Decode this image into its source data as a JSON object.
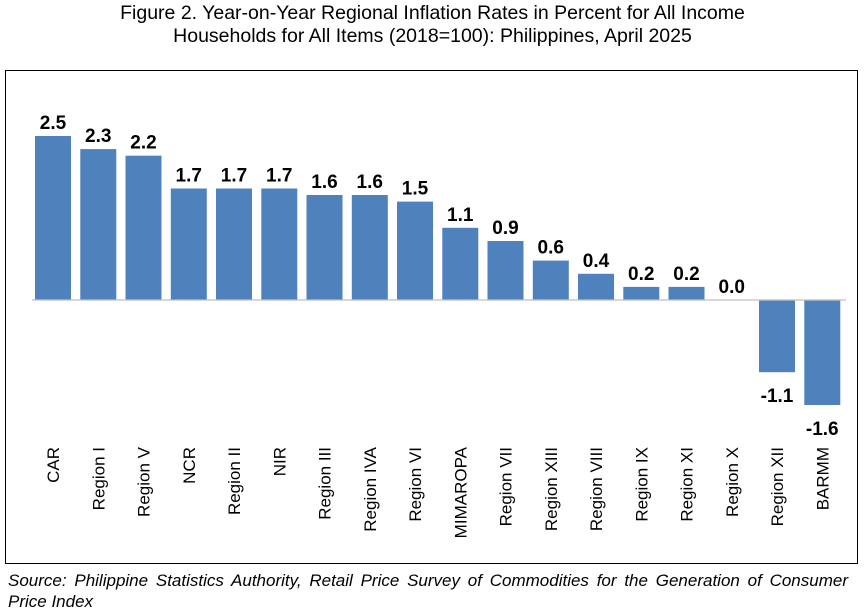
{
  "title_line1": "Figure 2. Year-on-Year Regional Inflation Rates in Percent for All Income",
  "title_line2": "Households for All Items (2018=100): Philippines, April 2025",
  "source": "Source: Philippine Statistics Authority, Retail Price Survey of Commodities for the Generation of Consumer Price Index",
  "colors": {
    "bar": "#4f81bd",
    "axis": "#bfbfbf",
    "frame": "#000000"
  },
  "chart_data": {
    "type": "bar",
    "title": "Figure 2. Year-on-Year Regional Inflation Rates in Percent for All Income Households for All Items (2018=100): Philippines, April 2025",
    "categories": [
      "CAR",
      "Region I",
      "Region V",
      "NCR",
      "Region II",
      "NIR",
      "Region III",
      "Region IVA",
      "Region VI",
      "MIMAROPA",
      "Region VII",
      "Region XIII",
      "Region VIII",
      "Region IX",
      "Region XI",
      "Region X",
      "Region XII",
      "BARMM"
    ],
    "values": [
      2.5,
      2.3,
      2.2,
      1.7,
      1.7,
      1.7,
      1.6,
      1.6,
      1.5,
      1.1,
      0.9,
      0.6,
      0.4,
      0.2,
      0.2,
      0.0,
      -1.1,
      -1.6
    ],
    "data_labels": [
      "2.5",
      "2.3",
      "2.2",
      "1.7",
      "1.7",
      "1.7",
      "1.6",
      "1.6",
      "1.5",
      "1.1",
      "0.9",
      "0.6",
      "0.4",
      "0.2",
      "0.2",
      "0.0",
      "-1.1",
      "-1.6"
    ],
    "xlabel": "",
    "ylabel": "",
    "ylim": [
      -1.6,
      2.5
    ],
    "grid": false,
    "legend": "none"
  }
}
